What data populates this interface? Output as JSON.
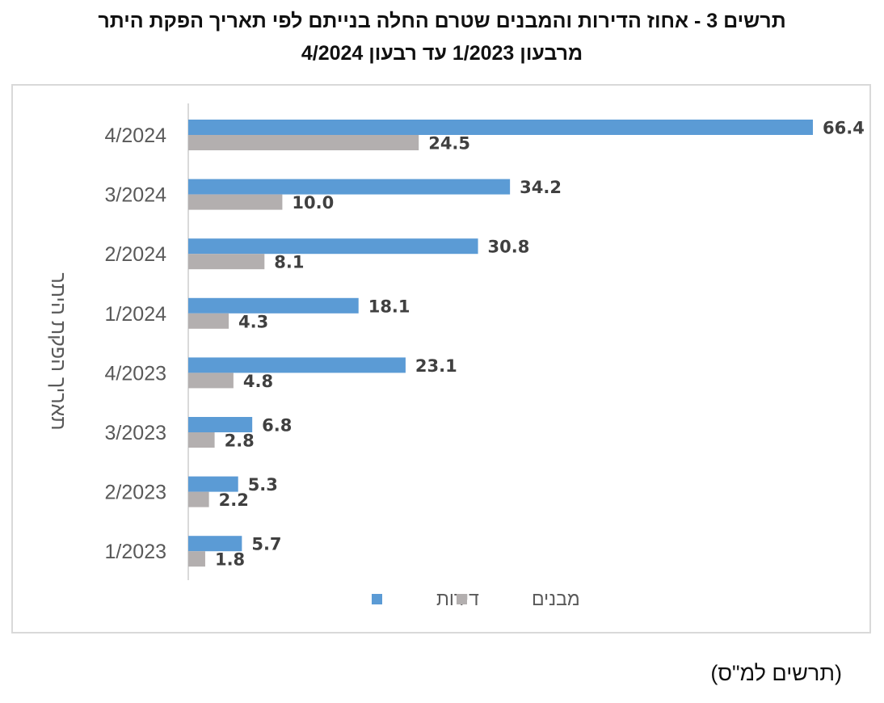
{
  "title_line1": "תרשים 3 - אחוז הדירות והמבנים שטרם החלה בנייתם לפי תאריך הפקת היתר",
  "title_line2": "מרבעון 1/2023 עד רבעון 4/2024",
  "source_note": "(תרשים למ\"ס)",
  "chart_data": {
    "type": "bar",
    "orientation": "horizontal",
    "ylabel": "תאריך הפקת היתר",
    "xlabel": "",
    "xlim": [
      0,
      66.4
    ],
    "grid": false,
    "legend_position": "bottom",
    "categories": [
      "4/2024",
      "3/2024",
      "2/2024",
      "1/2024",
      "4/2023",
      "3/2023",
      "2/2023",
      "1/2023"
    ],
    "series": [
      {
        "name": "דירות",
        "color": "#5b9bd5",
        "values": [
          66.4,
          34.2,
          30.8,
          18.1,
          23.1,
          6.8,
          5.3,
          5.7
        ],
        "labels": [
          "66.4",
          "34.2",
          "30.8",
          "18.1",
          "23.1",
          "6.8",
          "5.3",
          "5.7"
        ]
      },
      {
        "name": "מבנים",
        "color": "#b3afaf",
        "values": [
          24.5,
          10.0,
          8.1,
          4.3,
          4.8,
          2.8,
          2.2,
          1.8
        ],
        "labels": [
          "24.5",
          "10.0",
          "8.1",
          "4.3",
          "4.8",
          "2.8",
          "2.2",
          "1.8"
        ]
      }
    ]
  }
}
